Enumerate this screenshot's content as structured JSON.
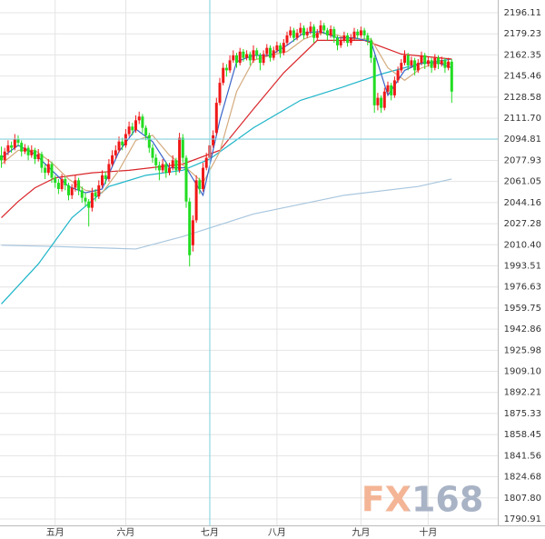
{
  "chart_data": {
    "type": "candlestick",
    "watermark": "FX168",
    "categories": [
      null,
      null,
      null,
      null,
      null,
      null,
      null,
      null,
      null,
      null,
      null,
      null,
      null,
      null,
      null,
      null,
      "五月",
      null,
      null,
      null,
      null,
      null,
      null,
      null,
      null,
      null,
      null,
      null,
      null,
      null,
      null,
      null,
      null,
      null,
      null,
      null,
      null,
      "六月",
      null,
      null,
      null,
      null,
      null,
      null,
      null,
      null,
      null,
      null,
      null,
      null,
      null,
      null,
      null,
      null,
      null,
      null,
      null,
      null,
      null,
      null,
      null,
      null,
      "七月",
      null,
      null,
      null,
      null,
      null,
      null,
      null,
      null,
      null,
      null,
      null,
      null,
      null,
      null,
      null,
      null,
      null,
      null,
      null,
      "八月",
      null,
      null,
      null,
      null,
      null,
      null,
      null,
      null,
      null,
      null,
      null,
      null,
      null,
      null,
      null,
      null,
      null,
      null,
      null,
      null,
      null,
      null,
      null,
      null,
      "九月",
      null,
      null,
      null,
      null,
      null,
      null,
      null,
      null,
      null,
      null,
      null,
      null,
      null,
      null,
      null,
      null,
      null,
      null,
      null,
      "十月",
      null,
      null,
      null,
      null,
      null
    ],
    "ohlc": [
      [
        2082,
        2089,
        2072,
        2078
      ],
      [
        2078,
        2088,
        2075,
        2085
      ],
      [
        2085,
        2094,
        2082,
        2090
      ],
      [
        2090,
        2093,
        2084,
        2088
      ],
      [
        2088,
        2099,
        2086,
        2095
      ],
      [
        2095,
        2098,
        2089,
        2092
      ],
      [
        2092,
        2094,
        2081,
        2085
      ],
      [
        2085,
        2091,
        2083,
        2088
      ],
      [
        2088,
        2090,
        2078,
        2082
      ],
      [
        2082,
        2090,
        2080,
        2086
      ],
      [
        2086,
        2088,
        2075,
        2079
      ],
      [
        2079,
        2087,
        2077,
        2083
      ],
      [
        2083,
        2085,
        2068,
        2072
      ],
      [
        2072,
        2075,
        2063,
        2068
      ],
      [
        2068,
        2079,
        2066,
        2075
      ],
      [
        2075,
        2077,
        2060,
        2064
      ],
      [
        2064,
        2066,
        2056,
        2060
      ],
      [
        2060,
        2063,
        2051,
        2055
      ],
      [
        2055,
        2067,
        2053,
        2063
      ],
      [
        2063,
        2065,
        2054,
        2058
      ],
      [
        2058,
        2060,
        2046,
        2050
      ],
      [
        2050,
        2059,
        2047,
        2056
      ],
      [
        2056,
        2066,
        2053,
        2062
      ],
      [
        2062,
        2064,
        2050,
        2054
      ],
      [
        2054,
        2057,
        2044,
        2048
      ],
      [
        2048,
        2052,
        2041,
        2045
      ],
      [
        2045,
        2047,
        2025,
        2040
      ],
      [
        2040,
        2056,
        2037,
        2052
      ],
      [
        2052,
        2055,
        2045,
        2049
      ],
      [
        2049,
        2062,
        2047,
        2058
      ],
      [
        2058,
        2070,
        2056,
        2066
      ],
      [
        2066,
        2069,
        2059,
        2063
      ],
      [
        2063,
        2079,
        2061,
        2075
      ],
      [
        2075,
        2086,
        2073,
        2082
      ],
      [
        2082,
        2090,
        2079,
        2086
      ],
      [
        2086,
        2097,
        2084,
        2093
      ],
      [
        2093,
        2096,
        2086,
        2090
      ],
      [
        2090,
        2103,
        2088,
        2099
      ],
      [
        2099,
        2109,
        2097,
        2105
      ],
      [
        2105,
        2108,
        2098,
        2102
      ],
      [
        2102,
        2114,
        2100,
        2110
      ],
      [
        2110,
        2117,
        2107,
        2113
      ],
      [
        2113,
        2115,
        2100,
        2104
      ],
      [
        2104,
        2106,
        2094,
        2098
      ],
      [
        2098,
        2100,
        2084,
        2088
      ],
      [
        2088,
        2091,
        2076,
        2080
      ],
      [
        2080,
        2083,
        2070,
        2074
      ],
      [
        2074,
        2077,
        2062,
        2070
      ],
      [
        2070,
        2079,
        2068,
        2075
      ],
      [
        2075,
        2077,
        2064,
        2068
      ],
      [
        2068,
        2076,
        2066,
        2072
      ],
      [
        2072,
        2082,
        2070,
        2078
      ],
      [
        2078,
        2080,
        2066,
        2070
      ],
      [
        2070,
        2100,
        2068,
        2096
      ],
      [
        2096,
        2099,
        2076,
        2080
      ],
      [
        2080,
        2082,
        2040,
        2045
      ],
      [
        2045,
        2048,
        1993,
        2002
      ],
      [
        2010,
        2034,
        2005,
        2030
      ],
      [
        2030,
        2066,
        2028,
        2062
      ],
      [
        2062,
        2064,
        2051,
        2055
      ],
      [
        2055,
        2076,
        2053,
        2072
      ],
      [
        2072,
        2084,
        2070,
        2080
      ],
      [
        2080,
        2094,
        2078,
        2090
      ],
      [
        2090,
        2102,
        2088,
        2098
      ],
      [
        2100,
        2128,
        2098,
        2124
      ],
      [
        2124,
        2144,
        2122,
        2140
      ],
      [
        2140,
        2156,
        2138,
        2152
      ],
      [
        2152,
        2155,
        2145,
        2150
      ],
      [
        2150,
        2162,
        2148,
        2158
      ],
      [
        2158,
        2166,
        2156,
        2162
      ],
      [
        2162,
        2164,
        2152,
        2156
      ],
      [
        2156,
        2168,
        2154,
        2165
      ],
      [
        2165,
        2167,
        2157,
        2160
      ],
      [
        2160,
        2166,
        2158,
        2163
      ],
      [
        2163,
        2165,
        2154,
        2158
      ],
      [
        2158,
        2170,
        2156,
        2166
      ],
      [
        2166,
        2168,
        2159,
        2162
      ],
      [
        2162,
        2164,
        2150,
        2156
      ],
      [
        2156,
        2166,
        2154,
        2163
      ],
      [
        2163,
        2171,
        2161,
        2168
      ],
      [
        2168,
        2170,
        2157,
        2160
      ],
      [
        2160,
        2169,
        2158,
        2166
      ],
      [
        2166,
        2173,
        2164,
        2170
      ],
      [
        2170,
        2172,
        2160,
        2164
      ],
      [
        2164,
        2175,
        2162,
        2172
      ],
      [
        2172,
        2181,
        2170,
        2178
      ],
      [
        2178,
        2185,
        2176,
        2182
      ],
      [
        2182,
        2184,
        2173,
        2176
      ],
      [
        2176,
        2183,
        2174,
        2180
      ],
      [
        2180,
        2188,
        2178,
        2184
      ],
      [
        2184,
        2186,
        2175,
        2178
      ],
      [
        2178,
        2184,
        2176,
        2181
      ],
      [
        2181,
        2189,
        2179,
        2185
      ],
      [
        2185,
        2187,
        2172,
        2176
      ],
      [
        2176,
        2183,
        2174,
        2180
      ],
      [
        2180,
        2190,
        2178,
        2186
      ],
      [
        2186,
        2188,
        2179,
        2182
      ],
      [
        2182,
        2184,
        2174,
        2178
      ],
      [
        2178,
        2186,
        2176,
        2183
      ],
      [
        2183,
        2185,
        2172,
        2176
      ],
      [
        2176,
        2178,
        2166,
        2170
      ],
      [
        2170,
        2177,
        2168,
        2174
      ],
      [
        2174,
        2181,
        2172,
        2178
      ],
      [
        2178,
        2180,
        2169,
        2172
      ],
      [
        2172,
        2179,
        2170,
        2176
      ],
      [
        2176,
        2184,
        2174,
        2181
      ],
      [
        2181,
        2183,
        2175,
        2178
      ],
      [
        2178,
        2185,
        2176,
        2182
      ],
      [
        2182,
        2184,
        2175,
        2178
      ],
      [
        2178,
        2180,
        2170,
        2174
      ],
      [
        2174,
        2176,
        2156,
        2160
      ],
      [
        2160,
        2162,
        2116,
        2122
      ],
      [
        2122,
        2132,
        2118,
        2128
      ],
      [
        2128,
        2130,
        2116,
        2120
      ],
      [
        2120,
        2136,
        2118,
        2133
      ],
      [
        2133,
        2141,
        2131,
        2138
      ],
      [
        2138,
        2140,
        2126,
        2130
      ],
      [
        2130,
        2145,
        2128,
        2142
      ],
      [
        2142,
        2153,
        2140,
        2150
      ],
      [
        2150,
        2159,
        2148,
        2156
      ],
      [
        2156,
        2166,
        2154,
        2162
      ],
      [
        2162,
        2164,
        2150,
        2154
      ],
      [
        2154,
        2161,
        2152,
        2158
      ],
      [
        2158,
        2160,
        2146,
        2150
      ],
      [
        2150,
        2159,
        2148,
        2156
      ],
      [
        2156,
        2165,
        2154,
        2162
      ],
      [
        2162,
        2164,
        2151,
        2155
      ],
      [
        2155,
        2161,
        2153,
        2158
      ],
      [
        2158,
        2160,
        2148,
        2152
      ],
      [
        2152,
        2163,
        2150,
        2160
      ],
      [
        2160,
        2162,
        2151,
        2155
      ],
      [
        2155,
        2161,
        2153,
        2158
      ],
      [
        2158,
        2160,
        2148,
        2152
      ],
      [
        2152,
        2160,
        2150,
        2157
      ],
      [
        2157,
        2159,
        2124,
        2133
      ]
    ],
    "up_color": "#f01818",
    "down_color": "#22dd22",
    "series": [
      {
        "color": "#a8c6de",
        "x": [
          0,
          16,
          40,
          54,
          75,
          102,
          124,
          134
        ],
        "values": [
          2010,
          2009,
          2007,
          2017,
          2035,
          2050,
          2057,
          2063
        ]
      },
      {
        "color": "#1fb5c9",
        "x": [
          0,
          11,
          21,
          32,
          43,
          54,
          62,
          75,
          89,
          102,
          113,
          124,
          134
        ],
        "values": [
          1963,
          1995,
          2032,
          2057,
          2066,
          2070,
          2079,
          2104,
          2126,
          2137,
          2147,
          2155,
          2159
        ]
      },
      {
        "color": "#d9262b",
        "x": [
          0,
          5,
          10,
          16,
          27,
          38,
          54,
          65,
          75,
          84,
          94,
          108,
          119,
          134
        ],
        "values": [
          2032,
          2045,
          2056,
          2064,
          2068,
          2070,
          2075,
          2086,
          2119,
          2148,
          2174,
          2174,
          2163,
          2159
        ]
      },
      {
        "color": "#d4aa7d",
        "x": [
          0,
          5,
          10,
          15,
          20,
          25,
          30,
          35,
          40,
          45,
          50,
          55,
          60,
          65,
          70,
          75,
          80,
          85,
          90,
          95,
          100,
          105,
          110,
          115,
          120,
          125,
          130,
          134
        ],
        "values": [
          2075,
          2086,
          2086,
          2076,
          2063,
          2054,
          2052,
          2070,
          2094,
          2098,
          2082,
          2072,
          2060,
          2085,
          2133,
          2158,
          2162,
          2165,
          2175,
          2180,
          2178,
          2175,
          2175,
          2152,
          2142,
          2152,
          2156,
          2155
        ]
      },
      {
        "color": "#3a63c8",
        "x": [
          0,
          5,
          10,
          15,
          20,
          25,
          30,
          35,
          40,
          45,
          50,
          55,
          60,
          65,
          70,
          75,
          80,
          85,
          90,
          95,
          100,
          105,
          110,
          115,
          120,
          125,
          130,
          134
        ],
        "values": [
          2080,
          2090,
          2083,
          2070,
          2057,
          2052,
          2055,
          2085,
          2103,
          2093,
          2072,
          2072,
          2050,
          2110,
          2157,
          2162,
          2162,
          2170,
          2180,
          2181,
          2176,
          2176,
          2173,
          2130,
          2150,
          2156,
          2156,
          2152
        ]
      }
    ],
    "ylim": [
      1785.8,
      2206.3
    ],
    "yticks": [
      2196.11,
      2179.23,
      2162.35,
      2145.46,
      2128.58,
      {
        "value": 2111.7,
        "label": "2111.70"
      },
      2094.81,
      2077.93,
      2061.05,
      2044.16,
      2027.28,
      {
        "value": 2010.4,
        "label": "2010.40"
      },
      1993.51,
      1976.63,
      1959.75,
      1942.86,
      1925.98,
      {
        "value": 1909.1,
        "label": "1909.10"
      },
      1892.21,
      1875.33,
      1858.45,
      1841.56,
      1824.68,
      {
        "value": 1807.8,
        "label": "1807.80"
      },
      1790.91
    ],
    "grid": true
  }
}
